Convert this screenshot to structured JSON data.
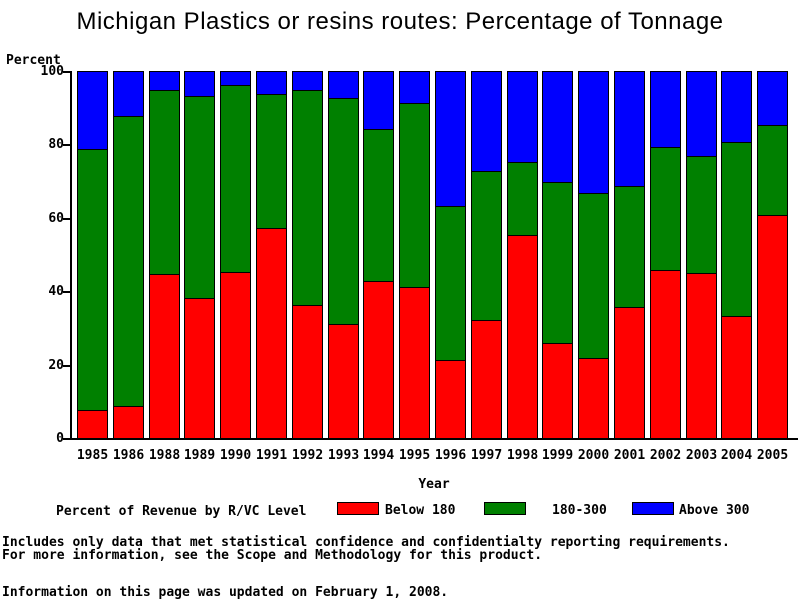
{
  "title": "Michigan Plastics or resins routes: Percentage of Tonnage",
  "y_axis": {
    "label": "Percent",
    "ticks": [
      0,
      20,
      40,
      60,
      80,
      100
    ]
  },
  "x_axis": {
    "label": "Year"
  },
  "legend": {
    "title": "Percent of Revenue by R/VC Level",
    "items": [
      {
        "label": "Below 180",
        "color": "#ff0000"
      },
      {
        "label": "180-300",
        "color": "#008000"
      },
      {
        "label": "Above 300",
        "color": "#0000ff"
      }
    ]
  },
  "chart_data": {
    "type": "bar",
    "stacked": true,
    "title": "Michigan Plastics or resins routes: Percentage of Tonnage",
    "xlabel": "Year",
    "ylabel": "Percent",
    "ylim": [
      0,
      100
    ],
    "grid": false,
    "legend_position": "bottom",
    "categories": [
      "1985",
      "1986",
      "1988",
      "1989",
      "1990",
      "1991",
      "1992",
      "1993",
      "1994",
      "1995",
      "1996",
      "1997",
      "1998",
      "1999",
      "2000",
      "2001",
      "2002",
      "2003",
      "2004",
      "2005"
    ],
    "series": [
      {
        "name": "Below 180",
        "color": "#ff0000",
        "values": [
          8,
          9,
          45,
          38.5,
          45.5,
          57.5,
          36.5,
          31.5,
          43,
          41.5,
          21.5,
          32.5,
          55.5,
          26,
          22,
          36,
          46,
          45,
          33.5,
          61
        ]
      },
      {
        "name": "180-300",
        "color": "#008000",
        "values": [
          71,
          79,
          50,
          55,
          51,
          36.5,
          58.5,
          61.5,
          41.5,
          50,
          42,
          40.5,
          20,
          44,
          45,
          33,
          33.5,
          32,
          47.5,
          24.5
        ]
      },
      {
        "name": "Above 300",
        "color": "#0000ff",
        "values": [
          21,
          12,
          5,
          6.5,
          3.5,
          6,
          5,
          7,
          15.5,
          8.5,
          36.5,
          27,
          24.5,
          30,
          33,
          31,
          20.5,
          23,
          19,
          14.5
        ]
      }
    ]
  },
  "footnotes": {
    "line1": "Includes only data that met statistical confidence and confidentialty reporting requirements.",
    "line2": "For more information, see the Scope and Methodology for this product.",
    "updated": "Information on this page was updated on February 1, 2008."
  }
}
